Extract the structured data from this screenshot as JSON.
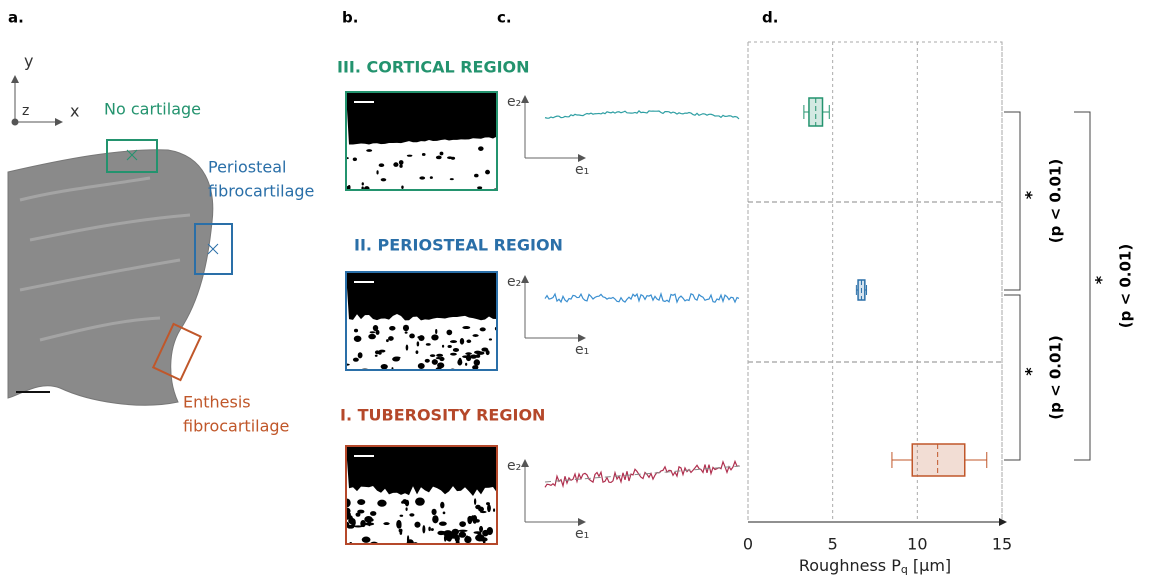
{
  "panels": {
    "a": "a.",
    "b": "b.",
    "c": "c.",
    "d": "d."
  },
  "panel_a": {
    "axis_y": "y",
    "axis_z": "z",
    "axis_x": "x",
    "no_cartilage": "No cartilage",
    "periosteal": [
      "Periosteal",
      "fibrocartilage"
    ],
    "enthesis": [
      "Enthesis",
      "fibrocartilage"
    ]
  },
  "regions": [
    {
      "title": "III. CORTICAL REGION",
      "color": "#23936e",
      "profile_color": "#2f9fa3"
    },
    {
      "title": "II. PERIOSTEAL REGION",
      "color": "#2a6fa8",
      "profile_color": "#3b8fd0"
    },
    {
      "title": "I. TUBEROSITY REGION",
      "color": "#b5482a",
      "profile_color": "#b0304f"
    }
  ],
  "profile_axes": {
    "e2": "e₂",
    "e1": "e₁"
  },
  "chart_data": {
    "type": "box",
    "x_label": {
      "text": "Roughness P",
      "sub": "q",
      "unit": " [μm]"
    },
    "xlim": [
      0,
      15
    ],
    "xticks": [
      0,
      5,
      10,
      15
    ],
    "grid": true,
    "boxes": [
      {
        "color": "#23936e",
        "whislo": 3.3,
        "q1": 3.6,
        "med": 4.0,
        "q3": 4.4,
        "whishi": 4.8
      },
      {
        "color": "#2a6fa8",
        "whislo": 6.4,
        "q1": 6.5,
        "med": 6.7,
        "q3": 6.9,
        "whishi": 7.0
      },
      {
        "color": "#c0572a",
        "whislo": 8.5,
        "q1": 9.7,
        "med": 11.2,
        "q3": 12.8,
        "whishi": 14.1
      }
    ],
    "significance": [
      {
        "star": "*",
        "p": "(p < 0.01)"
      },
      {
        "star": "*",
        "p": "(p < 0.01)"
      },
      {
        "star": "*",
        "p": "(p < 0.01)"
      }
    ]
  }
}
